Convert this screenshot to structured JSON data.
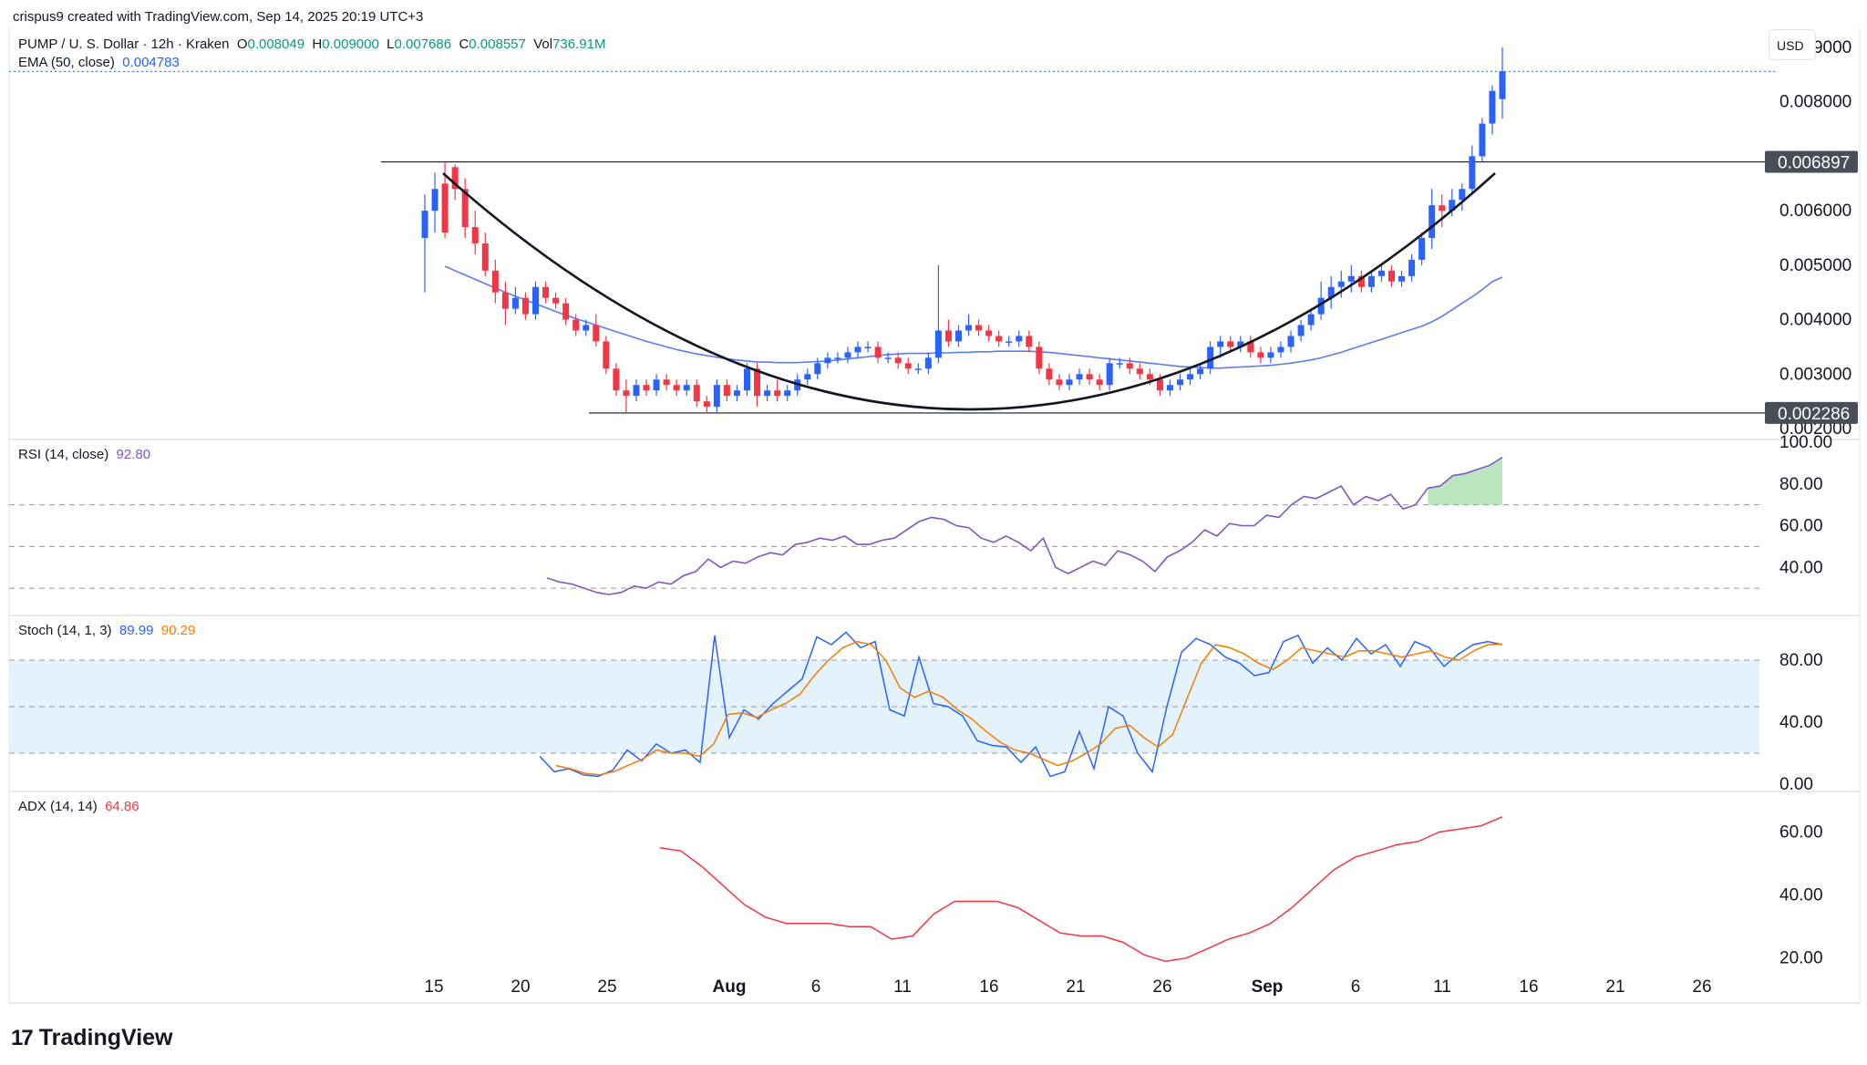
{
  "credit": "crispus9 created with TradingView.com, Sep 14, 2025 20:19 UTC+3",
  "brand": "TradingView",
  "currency_button": "USD",
  "header": {
    "symbol": "PUMP / U. S. Dollar · 12h · Kraken",
    "o_label": "O",
    "o": "0.008049",
    "h_label": "H",
    "h": "0.009000",
    "l_label": "L",
    "l": "0.007686",
    "c_label": "C",
    "c": "0.008557",
    "vol_label": "Vol",
    "vol": "736.91M",
    "ema_label": "EMA (50, close)",
    "ema": "0.004783"
  },
  "colors": {
    "up": "#2962ff",
    "down": "#f23645",
    "ema": "#5b7cf4",
    "rsi": "#7e57c2",
    "stoch_k": "#2962ff",
    "stoch_d": "#f57c00",
    "adx": "#f23645",
    "band": "#e3f2fd"
  },
  "chart_data": [
    {
      "type": "candlestick",
      "title": "PUMP / U. S. Dollar · 12h · Kraken",
      "ylim": [
        0.002,
        0.0092
      ],
      "y_ticks": [
        "0.009000",
        "0.008000",
        "0.006000",
        "0.005000",
        "0.004000",
        "0.003000",
        "0.002000"
      ],
      "x_ticks": [
        "15",
        "20",
        "25",
        "Aug",
        "6",
        "11",
        "16",
        "21",
        "26",
        "Sep",
        "6",
        "11",
        "16",
        "21",
        "26"
      ],
      "price_labels": [
        "0.006897",
        "0.002286"
      ],
      "horizontal_levels": [
        0.006897,
        0.002286
      ],
      "last_price_line": 0.008557,
      "ohlc": [
        [
          0.0055,
          0.0063,
          0.0045,
          0.006
        ],
        [
          0.006,
          0.0067,
          0.0056,
          0.0064
        ],
        [
          0.0065,
          0.0069,
          0.0055,
          0.0056
        ],
        [
          0.0068,
          0.00685,
          0.0062,
          0.0064
        ],
        [
          0.0064,
          0.0066,
          0.0055,
          0.0057
        ],
        [
          0.0057,
          0.006,
          0.0052,
          0.0054
        ],
        [
          0.0054,
          0.0056,
          0.0048,
          0.0049
        ],
        [
          0.0049,
          0.0051,
          0.0043,
          0.0045
        ],
        [
          0.0045,
          0.0047,
          0.0039,
          0.0042
        ],
        [
          0.0042,
          0.0046,
          0.0041,
          0.0044
        ],
        [
          0.0044,
          0.0045,
          0.004,
          0.0041
        ],
        [
          0.0041,
          0.0047,
          0.004,
          0.0046
        ],
        [
          0.0046,
          0.0047,
          0.0043,
          0.0044
        ],
        [
          0.0044,
          0.0045,
          0.0042,
          0.0043
        ],
        [
          0.0043,
          0.0044,
          0.0039,
          0.004
        ],
        [
          0.004,
          0.0041,
          0.0037,
          0.0038
        ],
        [
          0.0038,
          0.004,
          0.0037,
          0.0039
        ],
        [
          0.0039,
          0.0041,
          0.0035,
          0.0036
        ],
        [
          0.0036,
          0.0037,
          0.003,
          0.0031
        ],
        [
          0.0031,
          0.0032,
          0.0026,
          0.0027
        ],
        [
          0.0027,
          0.0029,
          0.0023,
          0.0026
        ],
        [
          0.0026,
          0.0029,
          0.0025,
          0.0028
        ],
        [
          0.0028,
          0.0029,
          0.0026,
          0.0027
        ],
        [
          0.0027,
          0.003,
          0.0026,
          0.0029
        ],
        [
          0.0029,
          0.003,
          0.0027,
          0.0028
        ],
        [
          0.0028,
          0.0029,
          0.0026,
          0.0027
        ],
        [
          0.0027,
          0.0029,
          0.0026,
          0.0028
        ],
        [
          0.0028,
          0.0029,
          0.0024,
          0.0025
        ],
        [
          0.0025,
          0.0026,
          0.0023,
          0.0024
        ],
        [
          0.0024,
          0.0029,
          0.0023,
          0.0028
        ],
        [
          0.0028,
          0.0029,
          0.0025,
          0.0026
        ],
        [
          0.0026,
          0.0028,
          0.0025,
          0.0027
        ],
        [
          0.0027,
          0.0032,
          0.0026,
          0.0031
        ],
        [
          0.0031,
          0.0032,
          0.0024,
          0.0026
        ],
        [
          0.0026,
          0.0028,
          0.0025,
          0.0027
        ],
        [
          0.0027,
          0.0029,
          0.0025,
          0.0026
        ],
        [
          0.0026,
          0.0028,
          0.0025,
          0.0027
        ],
        [
          0.0027,
          0.003,
          0.0026,
          0.0029
        ],
        [
          0.0029,
          0.0031,
          0.0028,
          0.003
        ],
        [
          0.003,
          0.0033,
          0.0029,
          0.0032
        ],
        [
          0.0032,
          0.0034,
          0.0031,
          0.0033
        ],
        [
          0.0033,
          0.0034,
          0.0032,
          0.0033
        ],
        [
          0.0033,
          0.0035,
          0.0032,
          0.0034
        ],
        [
          0.0034,
          0.0036,
          0.0033,
          0.0035
        ],
        [
          0.0035,
          0.0036,
          0.0034,
          0.0035
        ],
        [
          0.0035,
          0.0036,
          0.0032,
          0.0033
        ],
        [
          0.0033,
          0.0034,
          0.0032,
          0.0033
        ],
        [
          0.0033,
          0.0034,
          0.0031,
          0.0032
        ],
        [
          0.0032,
          0.0033,
          0.003,
          0.0031
        ],
        [
          0.0031,
          0.0032,
          0.003,
          0.0031
        ],
        [
          0.0031,
          0.0034,
          0.003,
          0.0033
        ],
        [
          0.0033,
          0.005,
          0.0032,
          0.0038
        ],
        [
          0.0038,
          0.004,
          0.0035,
          0.0036
        ],
        [
          0.0036,
          0.0039,
          0.0035,
          0.0038
        ],
        [
          0.0038,
          0.0041,
          0.0037,
          0.0039
        ],
        [
          0.0039,
          0.004,
          0.0037,
          0.0038
        ],
        [
          0.0038,
          0.0039,
          0.0036,
          0.0037
        ],
        [
          0.0037,
          0.0038,
          0.0035,
          0.0036
        ],
        [
          0.0036,
          0.0037,
          0.0035,
          0.0036
        ],
        [
          0.0036,
          0.0038,
          0.0035,
          0.0037
        ],
        [
          0.0037,
          0.0038,
          0.0034,
          0.0035
        ],
        [
          0.0035,
          0.0036,
          0.003,
          0.0031
        ],
        [
          0.0031,
          0.0032,
          0.0028,
          0.0029
        ],
        [
          0.0029,
          0.003,
          0.0027,
          0.0028
        ],
        [
          0.0028,
          0.003,
          0.0027,
          0.0029
        ],
        [
          0.0029,
          0.0031,
          0.0028,
          0.003
        ],
        [
          0.003,
          0.0031,
          0.0028,
          0.0029
        ],
        [
          0.0029,
          0.003,
          0.0027,
          0.0028
        ],
        [
          0.0028,
          0.0033,
          0.0027,
          0.0032
        ],
        [
          0.0032,
          0.0033,
          0.0031,
          0.0032
        ],
        [
          0.0032,
          0.0033,
          0.003,
          0.0031
        ],
        [
          0.0031,
          0.0032,
          0.0029,
          0.003
        ],
        [
          0.003,
          0.0031,
          0.0028,
          0.0029
        ],
        [
          0.0029,
          0.003,
          0.0026,
          0.0027
        ],
        [
          0.0027,
          0.0029,
          0.0026,
          0.0028
        ],
        [
          0.0028,
          0.003,
          0.0027,
          0.0029
        ],
        [
          0.0029,
          0.0031,
          0.0028,
          0.003
        ],
        [
          0.003,
          0.0032,
          0.0029,
          0.0031
        ],
        [
          0.0031,
          0.0036,
          0.003,
          0.0035
        ],
        [
          0.0035,
          0.0037,
          0.0033,
          0.0036
        ],
        [
          0.0036,
          0.0037,
          0.0034,
          0.0035
        ],
        [
          0.0035,
          0.0037,
          0.0034,
          0.0036
        ],
        [
          0.0036,
          0.0037,
          0.0033,
          0.0034
        ],
        [
          0.0034,
          0.0035,
          0.0032,
          0.0033
        ],
        [
          0.0033,
          0.0035,
          0.0032,
          0.0034
        ],
        [
          0.0034,
          0.0036,
          0.0033,
          0.0035
        ],
        [
          0.0035,
          0.0038,
          0.0034,
          0.0037
        ],
        [
          0.0037,
          0.004,
          0.0036,
          0.0039
        ],
        [
          0.0039,
          0.0042,
          0.0038,
          0.0041
        ],
        [
          0.0041,
          0.0047,
          0.004,
          0.0044
        ],
        [
          0.0044,
          0.0048,
          0.0042,
          0.0046
        ],
        [
          0.0046,
          0.0049,
          0.0044,
          0.0047
        ],
        [
          0.0047,
          0.005,
          0.0045,
          0.0048
        ],
        [
          0.0048,
          0.0049,
          0.0045,
          0.0046
        ],
        [
          0.0046,
          0.0049,
          0.0045,
          0.0048
        ],
        [
          0.0048,
          0.005,
          0.0047,
          0.0049
        ],
        [
          0.0049,
          0.005,
          0.0046,
          0.0047
        ],
        [
          0.0047,
          0.0049,
          0.0046,
          0.0048
        ],
        [
          0.0048,
          0.0052,
          0.0047,
          0.0051
        ],
        [
          0.0051,
          0.0056,
          0.005,
          0.0055
        ],
        [
          0.0055,
          0.0064,
          0.0053,
          0.0061
        ],
        [
          0.0061,
          0.0063,
          0.0057,
          0.006
        ],
        [
          0.006,
          0.0064,
          0.0059,
          0.0062
        ],
        [
          0.0062,
          0.0065,
          0.006,
          0.0064
        ],
        [
          0.0064,
          0.0072,
          0.0063,
          0.007
        ],
        [
          0.007,
          0.0077,
          0.0069,
          0.0076
        ],
        [
          0.0076,
          0.0083,
          0.0074,
          0.0082
        ],
        [
          0.00805,
          0.009,
          0.00769,
          0.00856
        ]
      ],
      "ema": [
        0.00498,
        0.0049,
        0.00482,
        0.00474,
        0.00466,
        0.00458,
        0.0045,
        0.00443,
        0.00436,
        0.00429,
        0.00422,
        0.00415,
        0.00408,
        0.00402,
        0.00396,
        0.0039,
        0.00384,
        0.00378,
        0.00372,
        0.00366,
        0.0036,
        0.00355,
        0.0035,
        0.00345,
        0.00341,
        0.00337,
        0.00334,
        0.00331,
        0.00328,
        0.00326,
        0.00324,
        0.00322,
        0.00322,
        0.00321,
        0.00321,
        0.00321,
        0.00322,
        0.00323,
        0.00324,
        0.00326,
        0.00328,
        0.0033,
        0.00332,
        0.00334,
        0.00336,
        0.00337,
        0.00338,
        0.00338,
        0.00338,
        0.00339,
        0.00339,
        0.0034,
        0.0034,
        0.00341,
        0.00341,
        0.00342,
        0.00342,
        0.00342,
        0.00342,
        0.00341,
        0.0034,
        0.00338,
        0.00336,
        0.00334,
        0.00332,
        0.0033,
        0.00328,
        0.00326,
        0.00324,
        0.00322,
        0.0032,
        0.00318,
        0.00316,
        0.00314,
        0.00313,
        0.00312,
        0.00311,
        0.00311,
        0.00312,
        0.00313,
        0.00314,
        0.00315,
        0.00316,
        0.00318,
        0.0032,
        0.00323,
        0.00326,
        0.0033,
        0.00335,
        0.0034,
        0.00346,
        0.00352,
        0.00358,
        0.00364,
        0.0037,
        0.00376,
        0.00382,
        0.00388,
        0.00396,
        0.00406,
        0.00418,
        0.0043,
        0.00442,
        0.00455,
        0.0047,
        0.00478
      ]
    },
    {
      "type": "line",
      "name": "RSI (14, close)",
      "value_label": "92.80",
      "y_ticks": [
        "100.00",
        "80.00",
        "60.00",
        "40.00"
      ],
      "ylim": [
        20,
        100
      ],
      "levels": [
        70,
        50,
        30
      ],
      "values": [
        35,
        33,
        32,
        30,
        28,
        27,
        28,
        31,
        30,
        33,
        32,
        36,
        38,
        44,
        40,
        43,
        42,
        45,
        47,
        46,
        51,
        52,
        54,
        53,
        55,
        51,
        51,
        53,
        54,
        58,
        62,
        64,
        63,
        60,
        59,
        54,
        52,
        55,
        52,
        48,
        54,
        40,
        37,
        40,
        43,
        41,
        48,
        46,
        43,
        38,
        45,
        48,
        52,
        58,
        55,
        61,
        60,
        60,
        65,
        64,
        70,
        74,
        73,
        76,
        79,
        70,
        74,
        72,
        75,
        68,
        70,
        78,
        79,
        84,
        85,
        87,
        89,
        92.8
      ]
    },
    {
      "type": "line",
      "name": "Stoch (14, 1, 3)",
      "value_labels": [
        "89.99",
        "90.29"
      ],
      "y_ticks": [
        "80.00",
        "40.00",
        "0.00"
      ],
      "ylim": [
        0,
        100
      ],
      "levels": [
        80,
        50,
        20
      ],
      "k": [
        18,
        8,
        10,
        6,
        5,
        9,
        22,
        15,
        26,
        20,
        22,
        14,
        96,
        30,
        48,
        42,
        52,
        60,
        68,
        95,
        90,
        98,
        88,
        92,
        48,
        44,
        82,
        52,
        50,
        44,
        28,
        25,
        24,
        14,
        24,
        5,
        8,
        34,
        10,
        50,
        44,
        20,
        8,
        50,
        85,
        94,
        90,
        82,
        78,
        70,
        72,
        92,
        96,
        78,
        88,
        80,
        94,
        84,
        90,
        76,
        92,
        88,
        76,
        84,
        90,
        92,
        89.99
      ],
      "d": [
        12,
        10,
        7,
        6,
        8,
        12,
        16,
        22,
        20,
        20,
        18,
        26,
        45,
        46,
        43,
        48,
        52,
        58,
        70,
        80,
        88,
        92,
        90,
        80,
        62,
        56,
        60,
        56,
        48,
        42,
        34,
        27,
        22,
        20,
        16,
        12,
        15,
        20,
        26,
        36,
        38,
        30,
        24,
        32,
        55,
        78,
        90,
        88,
        84,
        78,
        74,
        80,
        88,
        86,
        84,
        82,
        86,
        86,
        84,
        82,
        84,
        86,
        82,
        80,
        86,
        90,
        90.29
      ]
    },
    {
      "type": "line",
      "name": "ADX (14, 14)",
      "value_label": "64.86",
      "y_ticks": [
        "60.00",
        "40.00",
        "20.00"
      ],
      "ylim": [
        15,
        70
      ],
      "values": [
        55,
        54,
        49,
        43,
        37,
        33,
        31,
        31,
        31,
        30,
        30,
        26,
        27,
        34,
        38,
        38,
        38,
        36,
        32,
        28,
        27,
        27,
        25,
        21,
        19,
        20,
        23,
        26,
        28,
        31,
        36,
        42,
        48,
        52,
        54,
        56,
        57,
        60,
        61,
        62,
        64.86
      ]
    }
  ]
}
